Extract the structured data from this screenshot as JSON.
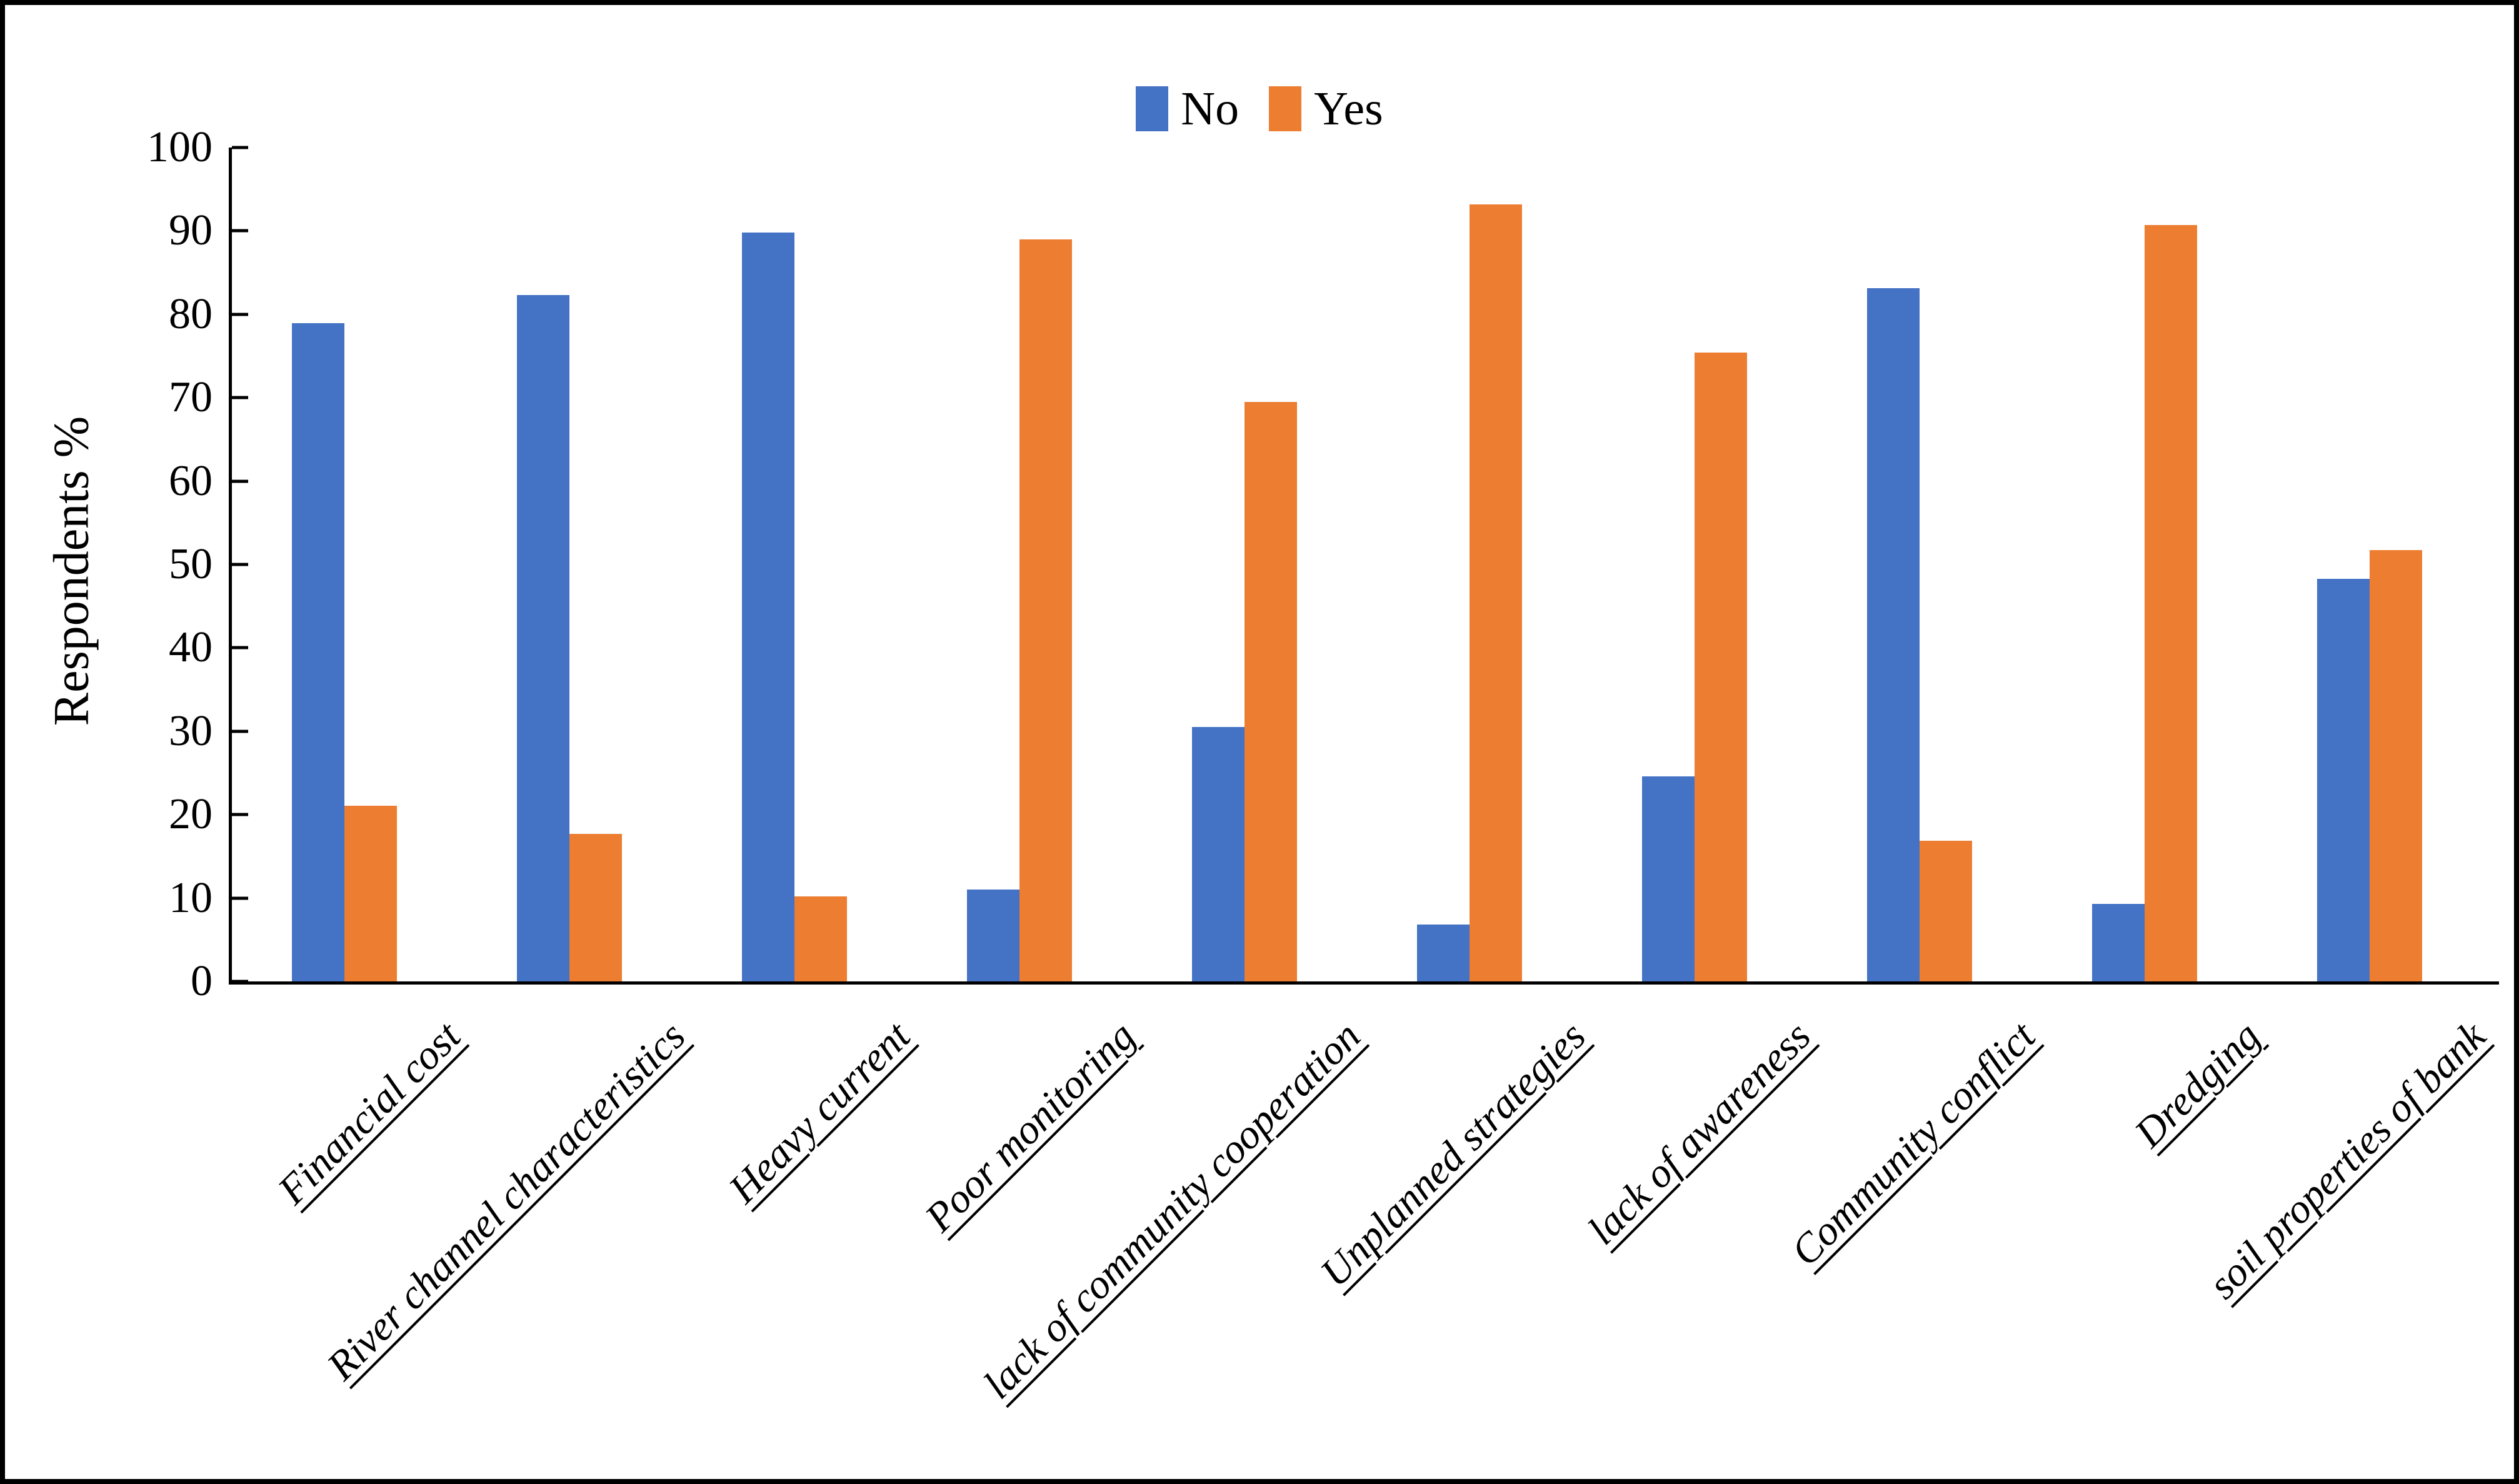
{
  "figure": {
    "background": "#ffffff",
    "border_color": "#000000"
  },
  "legend": {
    "position": "top-center",
    "items": [
      {
        "label": "No",
        "color": "#4472C4"
      },
      {
        "label": "Yes",
        "color": "#ED7D31"
      }
    ]
  },
  "chart_data": {
    "type": "bar",
    "title": "",
    "xlabel": "",
    "ylabel": "Respondents %",
    "ylim": [
      0,
      100
    ],
    "yticks": [
      0,
      10,
      20,
      30,
      40,
      50,
      60,
      70,
      80,
      90,
      100
    ],
    "grid": false,
    "legend_position": "top-center",
    "categories": [
      "Financial cost",
      "River channel characteristics",
      "Heavy current",
      "Poor monitoring",
      "lack of community cooperation",
      "Unplanned strategies",
      "lack of awareness",
      "Community conflict",
      "Dredging",
      "soil properties of bank"
    ],
    "series": [
      {
        "name": "No",
        "color": "#4472C4",
        "values": [
          78.9,
          82.3,
          89.8,
          11.0,
          30.5,
          6.8,
          24.6,
          83.1,
          9.3,
          48.3
        ]
      },
      {
        "name": "Yes",
        "color": "#ED7D31",
        "values": [
          21.1,
          17.7,
          10.2,
          89.0,
          69.5,
          93.2,
          75.4,
          16.9,
          90.7,
          51.7
        ]
      }
    ]
  }
}
